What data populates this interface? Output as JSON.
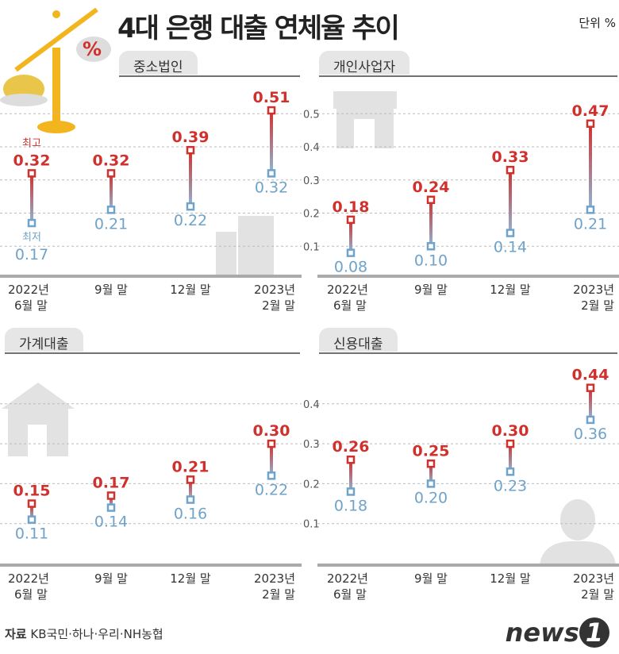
{
  "title": "4대 은행 대출 연체율 추이",
  "unit": "단위 %",
  "source_label": "자료",
  "source": "KB국민·하나·우리·NH농협",
  "logo": "news1",
  "colors": {
    "high": "#d0312d",
    "low": "#6fa3c9",
    "grid": "#bbbbbb",
    "axis": "#aaaaaa"
  },
  "legend": {
    "high": "최고",
    "low": "최저"
  },
  "chart_data": [
    {
      "type": "range",
      "title": "중소법인",
      "categories": [
        "2022년 6월 말",
        "9월 말",
        "12월 말",
        "2023년 2월 말"
      ],
      "high": [
        0.32,
        0.32,
        0.39,
        0.51
      ],
      "low": [
        0.17,
        0.21,
        0.22,
        0.32
      ],
      "high_labels": [
        "0.32",
        "0.32",
        "0.39",
        "0.51"
      ],
      "low_labels": [
        "0.17",
        "0.21",
        "0.22",
        "0.32"
      ],
      "ylim": [
        0,
        0.55
      ],
      "yticks": [],
      "grid": true
    },
    {
      "type": "range",
      "title": "개인사업자",
      "categories": [
        "2022년 6월 말",
        "9월 말",
        "12월 말",
        "2023년 2월 말"
      ],
      "high": [
        0.18,
        0.24,
        0.33,
        0.47
      ],
      "low": [
        0.08,
        0.1,
        0.14,
        0.21
      ],
      "high_labels": [
        "0.18",
        "0.24",
        "0.33",
        "0.47"
      ],
      "low_labels": [
        "0.08",
        "0.10",
        "0.14",
        "0.21"
      ],
      "ylim": [
        0,
        0.55
      ],
      "yticks": [
        "0.1",
        "0.2",
        "0.3",
        "0.4",
        "0.5"
      ],
      "grid": true
    },
    {
      "type": "range",
      "title": "가계대출",
      "categories": [
        "2022년 6월 말",
        "9월 말",
        "12월 말",
        "2023년 2월 말"
      ],
      "high": [
        0.15,
        0.17,
        0.21,
        0.3
      ],
      "low": [
        0.11,
        0.14,
        0.16,
        0.22
      ],
      "high_labels": [
        "0.15",
        "0.17",
        "0.21",
        "0.30"
      ],
      "low_labels": [
        "0.11",
        "0.14",
        "0.16",
        "0.22"
      ],
      "ylim": [
        0,
        0.45
      ],
      "yticks": [],
      "grid": true
    },
    {
      "type": "range",
      "title": "신용대출",
      "categories": [
        "2022년 6월 말",
        "9월 말",
        "12월 말",
        "2023년 2월 말"
      ],
      "high": [
        0.26,
        0.25,
        0.3,
        0.44
      ],
      "low": [
        0.18,
        0.2,
        0.23,
        0.36
      ],
      "high_labels": [
        "0.26",
        "0.25",
        "0.30",
        "0.44"
      ],
      "low_labels": [
        "0.18",
        "0.20",
        "0.23",
        "0.36"
      ],
      "ylim": [
        0,
        0.45
      ],
      "yticks": [
        "0.1",
        "0.2",
        "0.3",
        "0.4"
      ],
      "grid": true
    }
  ]
}
